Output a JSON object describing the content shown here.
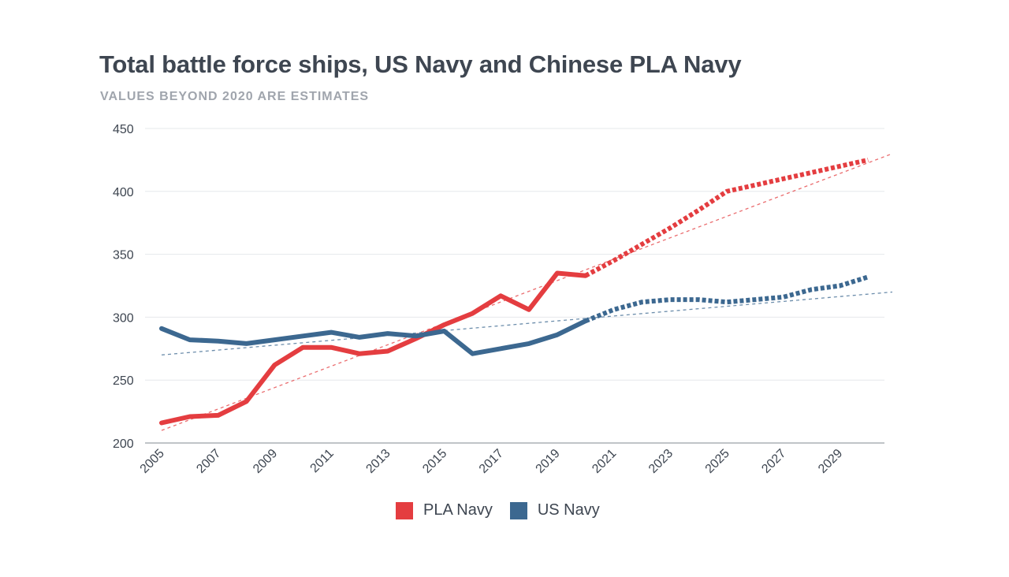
{
  "title": "Total battle force ships, US Navy and Chinese PLA Navy",
  "subtitle": "VALUES BEYOND 2020 ARE ESTIMATES",
  "colors": {
    "pla": "#e43d40",
    "us": "#3c6890",
    "grid": "#e6e8eb",
    "axis": "#9aa0a6",
    "text": "#3e4651"
  },
  "chart_data": {
    "type": "line",
    "title": "Total battle force ships, US Navy and Chinese PLA Navy",
    "subtitle": "VALUES BEYOND 2020 ARE ESTIMATES",
    "xlabel": "",
    "ylabel": "",
    "xlim": [
      2005,
      2030
    ],
    "ylim": [
      200,
      450
    ],
    "yticks": [
      200,
      250,
      300,
      350,
      400,
      450
    ],
    "xticks": [
      2005,
      2007,
      2009,
      2011,
      2013,
      2015,
      2017,
      2019,
      2021,
      2023,
      2025,
      2027,
      2029
    ],
    "estimate_start": 2020,
    "legend_position": "bottom-center",
    "series": [
      {
        "name": "PLA Navy",
        "color": "#e43d40",
        "x": [
          2005,
          2006,
          2007,
          2008,
          2009,
          2010,
          2011,
          2012,
          2013,
          2014,
          2015,
          2016,
          2017,
          2018,
          2019,
          2020,
          2021,
          2022,
          2023,
          2024,
          2025,
          2026,
          2027,
          2028,
          2029,
          2030
        ],
        "values": [
          216,
          221,
          222,
          233,
          262,
          276,
          276,
          271,
          273,
          283,
          294,
          303,
          317,
          306,
          335,
          333,
          345,
          358,
          371,
          385,
          400,
          405,
          410,
          415,
          420,
          425
        ],
        "trend": [
          210,
          430
        ]
      },
      {
        "name": "US Navy",
        "color": "#3c6890",
        "x": [
          2005,
          2006,
          2007,
          2008,
          2009,
          2010,
          2011,
          2012,
          2013,
          2014,
          2015,
          2016,
          2017,
          2018,
          2019,
          2020,
          2021,
          2022,
          2023,
          2024,
          2025,
          2026,
          2027,
          2028,
          2029,
          2030
        ],
        "values": [
          291,
          282,
          281,
          279,
          282,
          285,
          288,
          284,
          287,
          285,
          289,
          271,
          275,
          279,
          286,
          297,
          306,
          312,
          314,
          314,
          312,
          314,
          316,
          322,
          325,
          332
        ],
        "trend": [
          270,
          320
        ]
      }
    ]
  }
}
